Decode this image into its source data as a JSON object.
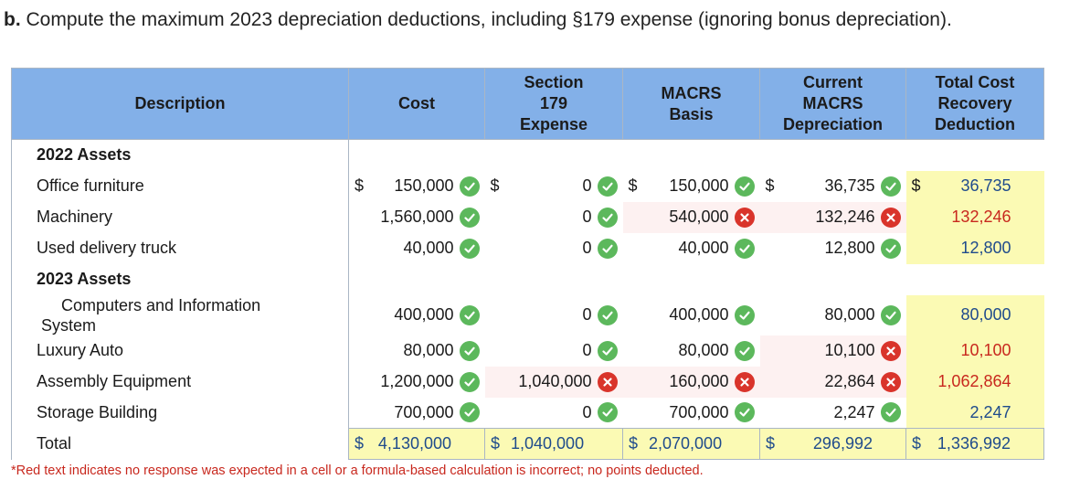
{
  "heading": {
    "prefix": "b.",
    "text": "Compute the maximum 2023 depreciation deductions, including §179 expense (ignoring bonus depreciation)."
  },
  "table": {
    "headers": {
      "description": "Description",
      "cost": "Cost",
      "s179": [
        "Section",
        "179",
        "Expense"
      ],
      "basis": [
        "MACRS",
        "Basis"
      ],
      "current": [
        "Current",
        "MACRS",
        "Depreciation"
      ],
      "total": [
        "Total Cost",
        "Recovery",
        "Deduction"
      ]
    },
    "section_2022": "2022 Assets",
    "section_2023": "2023 Assets",
    "rows": [
      {
        "desc": "Office furniture",
        "cost": "150,000",
        "s179": "0",
        "basis": "150,000",
        "current": "36,735",
        "total": "36,735"
      },
      {
        "desc": "Machinery",
        "cost": "1,560,000",
        "s179": "0",
        "basis": "540,000",
        "current": "132,246",
        "total": "132,246"
      },
      {
        "desc": "Used delivery truck",
        "cost": "40,000",
        "s179": "0",
        "basis": "40,000",
        "current": "12,800",
        "total": "12,800"
      },
      {
        "desc_line1": "Computers and Information",
        "desc_line2": "System",
        "cost": "400,000",
        "s179": "0",
        "basis": "400,000",
        "current": "80,000",
        "total": "80,000"
      },
      {
        "desc": "Luxury Auto",
        "cost": "80,000",
        "s179": "0",
        "basis": "80,000",
        "current": "10,100",
        "total": "10,100"
      },
      {
        "desc": "Assembly Equipment",
        "cost": "1,200,000",
        "s179": "1,040,000",
        "basis": "160,000",
        "current": "22,864",
        "total": "1,062,864"
      },
      {
        "desc": "Storage Building",
        "cost": "700,000",
        "s179": "0",
        "basis": "700,000",
        "current": "2,247",
        "total": "2,247"
      }
    ],
    "total": {
      "desc": "Total",
      "cost": "4,130,000",
      "s179": "1,040,000",
      "basis": "2,070,000",
      "current": "296,992",
      "total": "1,336,992"
    },
    "currency": "$"
  },
  "status_icons": {
    "ok": "check-circle-icon",
    "bad": "x-circle-icon",
    "ok_color": "#5cb85c",
    "bad_color": "#d9342b"
  },
  "footnote": "*Red text indicates no response was expected in a cell or a formula-based calculation is incorrect; no points deducted."
}
